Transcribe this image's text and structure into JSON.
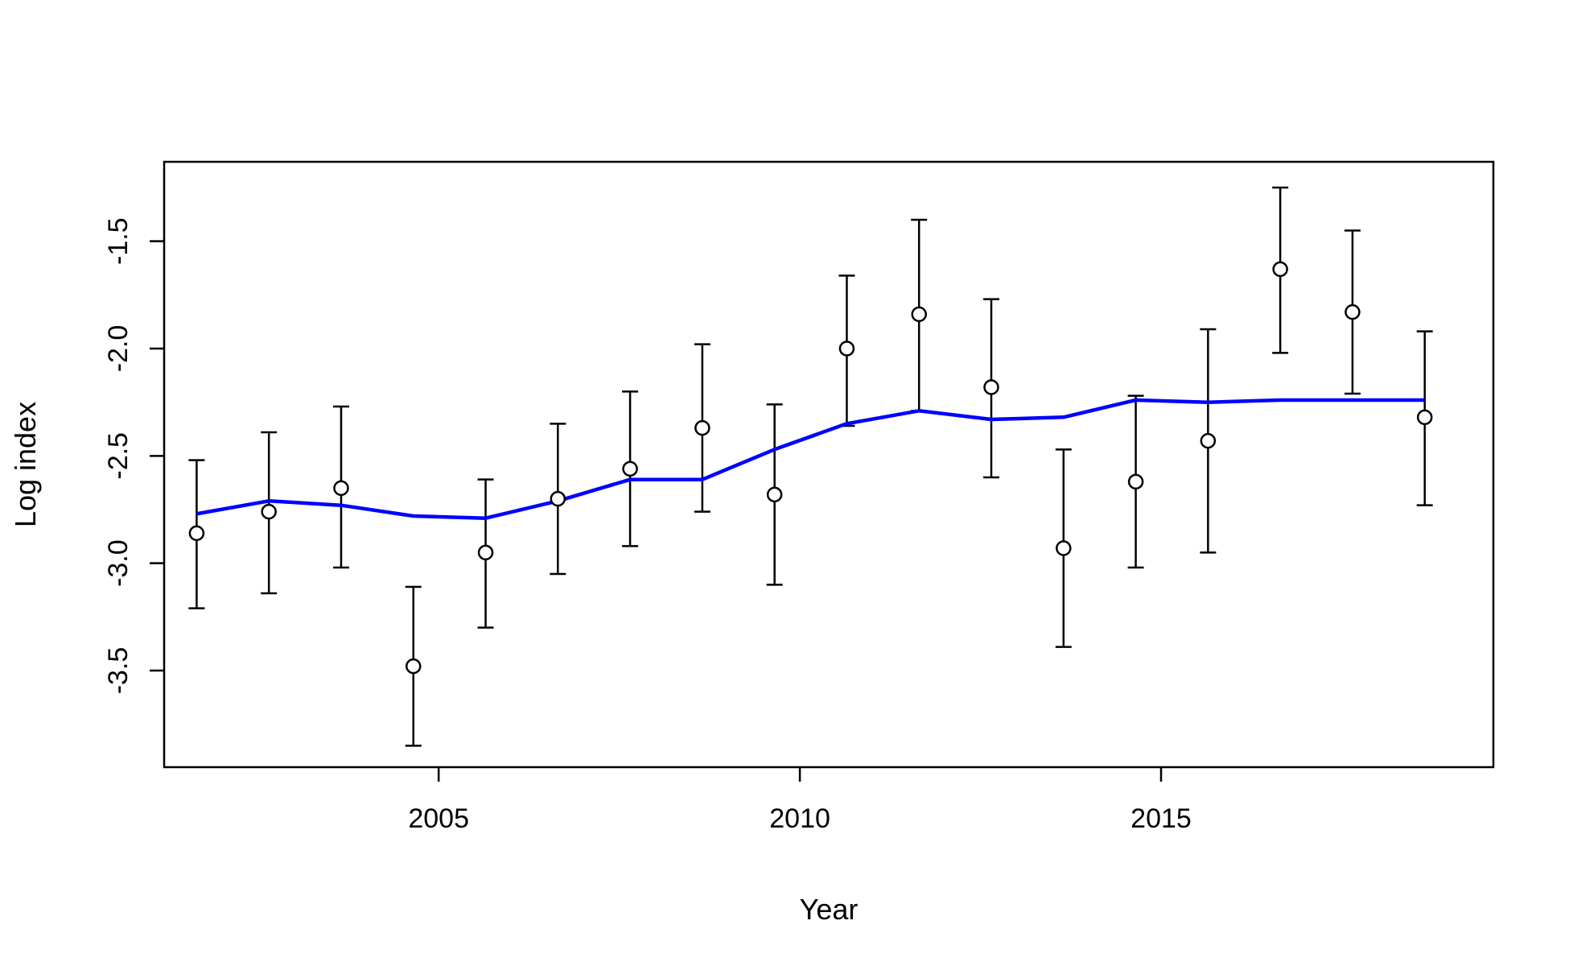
{
  "chart_data": {
    "type": "scatter",
    "title": "",
    "xlabel": "Year",
    "ylabel": "Log index",
    "xlim": [
      2001.2,
      2019.6
    ],
    "ylim": [
      -3.95,
      -1.13
    ],
    "x_ticks": [
      2005,
      2010,
      2015
    ],
    "y_ticks": [
      -3.5,
      -3.0,
      -2.5,
      -2.0,
      -1.5
    ],
    "y_tick_labels": [
      "-3.5",
      "-3.0",
      "-2.5",
      "-2.0",
      "-1.5"
    ],
    "grid": false,
    "series": [
      {
        "kind": "points_with_error_bars",
        "marker": "open-circle",
        "color": "#000000",
        "points": [
          {
            "x": 2001.65,
            "y": -2.86,
            "lo": -3.21,
            "hi": -2.52
          },
          {
            "x": 2002.65,
            "y": -2.76,
            "lo": -3.14,
            "hi": -2.39
          },
          {
            "x": 2003.65,
            "y": -2.65,
            "lo": -3.02,
            "hi": -2.27
          },
          {
            "x": 2004.65,
            "y": -3.48,
            "lo": -3.85,
            "hi": -3.11
          },
          {
            "x": 2005.65,
            "y": -2.95,
            "lo": -3.3,
            "hi": -2.61
          },
          {
            "x": 2006.65,
            "y": -2.7,
            "lo": -3.05,
            "hi": -2.35
          },
          {
            "x": 2007.65,
            "y": -2.56,
            "lo": -2.92,
            "hi": -2.2
          },
          {
            "x": 2008.65,
            "y": -2.37,
            "lo": -2.76,
            "hi": -1.98
          },
          {
            "x": 2009.65,
            "y": -2.68,
            "lo": -3.1,
            "hi": -2.26
          },
          {
            "x": 2010.65,
            "y": -2.0,
            "lo": -2.36,
            "hi": -1.66
          },
          {
            "x": 2011.65,
            "y": -1.84,
            "lo": -2.29,
            "hi": -1.4
          },
          {
            "x": 2012.65,
            "y": -2.18,
            "lo": -2.6,
            "hi": -1.77
          },
          {
            "x": 2013.65,
            "y": -2.93,
            "lo": -3.39,
            "hi": -2.47
          },
          {
            "x": 2014.65,
            "y": -2.62,
            "lo": -3.02,
            "hi": -2.22
          },
          {
            "x": 2015.65,
            "y": -2.43,
            "lo": -2.95,
            "hi": -1.91
          },
          {
            "x": 2016.65,
            "y": -1.63,
            "lo": -2.02,
            "hi": -1.25
          },
          {
            "x": 2017.65,
            "y": -1.83,
            "lo": -2.21,
            "hi": -1.45
          },
          {
            "x": 2018.65,
            "y": -2.32,
            "lo": -2.73,
            "hi": -1.92
          }
        ]
      },
      {
        "kind": "line",
        "color": "#0000ff",
        "x": [
          2001.65,
          2002.65,
          2003.65,
          2004.65,
          2005.65,
          2006.65,
          2007.65,
          2008.65,
          2009.65,
          2010.65,
          2011.65,
          2012.65,
          2013.65,
          2014.65,
          2015.65,
          2016.65,
          2017.65,
          2018.65
        ],
        "y": [
          -2.77,
          -2.71,
          -2.73,
          -2.78,
          -2.79,
          -2.71,
          -2.61,
          -2.61,
          -2.47,
          -2.35,
          -2.29,
          -2.33,
          -2.32,
          -2.24,
          -2.25,
          -2.24,
          -2.24,
          -2.24
        ]
      }
    ]
  }
}
